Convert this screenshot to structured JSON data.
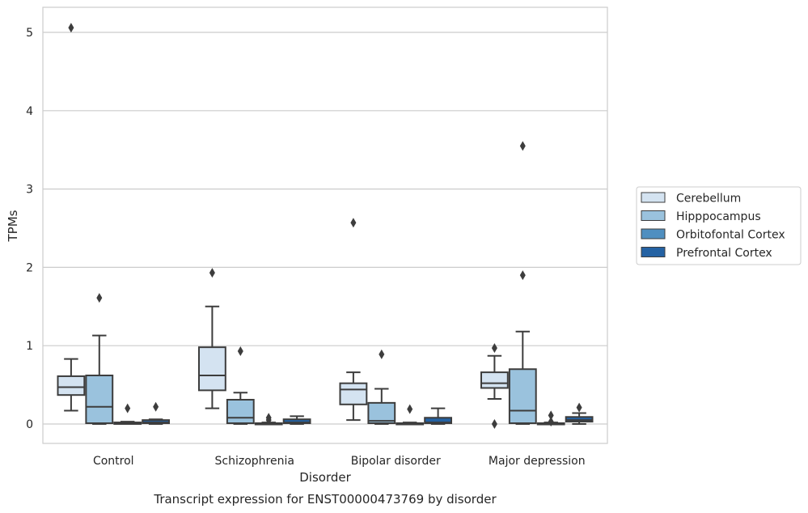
{
  "chart_data": {
    "type": "box",
    "title": "Transcript expression for ENST00000473769 by disorder",
    "xlabel": "Disorder",
    "ylabel": "TPMs",
    "ylim": [
      -0.25,
      5.32
    ],
    "yticks": [
      0,
      1,
      2,
      3,
      4,
      5
    ],
    "grid": true,
    "legend_position": "right",
    "categories": [
      "Control",
      "Schizophrenia",
      "Bipolar disorder",
      "Major depression"
    ],
    "series": [
      {
        "name": "Cerebellum",
        "color": "#d4e3f1",
        "boxes": [
          {
            "whisker_low": 0.17,
            "q1": 0.37,
            "median": 0.47,
            "q3": 0.61,
            "whisker_high": 0.83,
            "outliers": [
              5.06
            ]
          },
          {
            "whisker_low": 0.2,
            "q1": 0.43,
            "median": 0.62,
            "q3": 0.98,
            "whisker_high": 1.5,
            "outliers": [
              1.93
            ]
          },
          {
            "whisker_low": 0.05,
            "q1": 0.25,
            "median": 0.44,
            "q3": 0.52,
            "whisker_high": 0.66,
            "outliers": [
              2.57
            ]
          },
          {
            "whisker_low": 0.32,
            "q1": 0.46,
            "median": 0.52,
            "q3": 0.66,
            "whisker_high": 0.87,
            "outliers": [
              0.97,
              0.0
            ]
          }
        ]
      },
      {
        "name": "Hipppocampus",
        "color": "#9ac2dd",
        "boxes": [
          {
            "whisker_low": 0.0,
            "q1": 0.01,
            "median": 0.22,
            "q3": 0.62,
            "whisker_high": 1.13,
            "outliers": [
              1.61
            ]
          },
          {
            "whisker_low": 0.0,
            "q1": 0.01,
            "median": 0.08,
            "q3": 0.31,
            "whisker_high": 0.4,
            "outliers": [
              0.93
            ]
          },
          {
            "whisker_low": 0.0,
            "q1": 0.01,
            "median": 0.04,
            "q3": 0.27,
            "whisker_high": 0.45,
            "outliers": [
              0.89
            ]
          },
          {
            "whisker_low": 0.0,
            "q1": 0.01,
            "median": 0.17,
            "q3": 0.7,
            "whisker_high": 1.18,
            "outliers": [
              3.55,
              1.9
            ]
          }
        ]
      },
      {
        "name": "Orbitofontal Cortex",
        "color": "#4f8fc0",
        "boxes": [
          {
            "whisker_low": 0.0,
            "q1": 0.0,
            "median": 0.01,
            "q3": 0.02,
            "whisker_high": 0.03,
            "outliers": [
              0.2
            ]
          },
          {
            "whisker_low": 0.0,
            "q1": 0.0,
            "median": 0.01,
            "q3": 0.01,
            "whisker_high": 0.02,
            "outliers": [
              0.08,
              0.05
            ]
          },
          {
            "whisker_low": 0.0,
            "q1": 0.0,
            "median": 0.01,
            "q3": 0.01,
            "whisker_high": 0.02,
            "outliers": [
              0.19
            ]
          },
          {
            "whisker_low": 0.0,
            "q1": 0.0,
            "median": 0.01,
            "q3": 0.01,
            "whisker_high": 0.02,
            "outliers": [
              0.11,
              0.03
            ]
          }
        ]
      },
      {
        "name": "Prefrontal Cortex",
        "color": "#2462a3",
        "boxes": [
          {
            "whisker_low": 0.0,
            "q1": 0.01,
            "median": 0.02,
            "q3": 0.05,
            "whisker_high": 0.06,
            "outliers": [
              0.22
            ]
          },
          {
            "whisker_low": 0.0,
            "q1": 0.01,
            "median": 0.02,
            "q3": 0.06,
            "whisker_high": 0.1,
            "outliers": []
          },
          {
            "whisker_low": 0.0,
            "q1": 0.01,
            "median": 0.02,
            "q3": 0.08,
            "whisker_high": 0.2,
            "outliers": []
          },
          {
            "whisker_low": 0.0,
            "q1": 0.03,
            "median": 0.05,
            "q3": 0.09,
            "whisker_high": 0.14,
            "outliers": [
              0.21
            ]
          }
        ]
      }
    ]
  }
}
